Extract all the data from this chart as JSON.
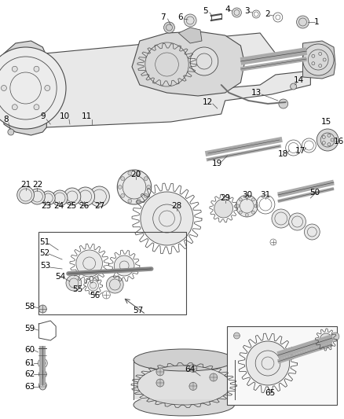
{
  "bg": "#ffffff",
  "lc": "#4a4a4a",
  "tc": "#000000",
  "fs": 7.5,
  "figsize": [
    4.38,
    5.33
  ],
  "dpi": 100
}
